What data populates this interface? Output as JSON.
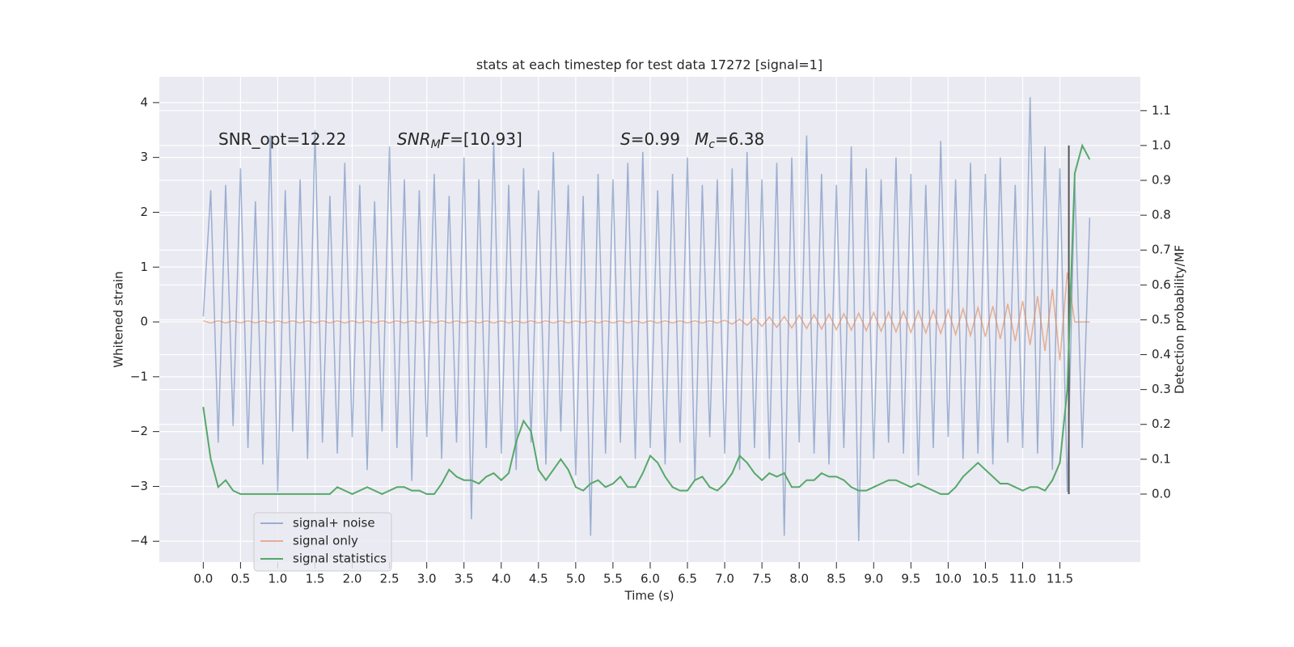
{
  "chart_data": {
    "type": "line",
    "title": "stats at each timestep for test data 17272 [signal=1]",
    "xlabel": "Time (s)",
    "ylabel": "Whitened strain",
    "y2label": "Detection probability/MF",
    "xlim": [
      -0.59,
      12.58
    ],
    "ylim": [
      -4.38,
      4.47
    ],
    "y2lim": [
      -0.195,
      1.197
    ],
    "xticks": [
      {
        "value": 0,
        "label": "0.0"
      },
      0.5,
      {
        "value": 1,
        "label": "1.0"
      },
      1.5,
      {
        "value": 2,
        "label": "2.0"
      },
      2.5,
      {
        "value": 3,
        "label": "3.0"
      },
      3.5,
      {
        "value": 4,
        "label": "4.0"
      },
      4.5,
      {
        "value": 5,
        "label": "5.0"
      },
      5.5,
      {
        "value": 6,
        "label": "6.0"
      },
      6.5,
      {
        "value": 7,
        "label": "7.0"
      },
      7.5,
      {
        "value": 8,
        "label": "8.0"
      },
      8.5,
      {
        "value": 9,
        "label": "9.0"
      },
      9.5,
      {
        "value": 10,
        "label": "10.0"
      },
      10.5,
      {
        "value": 11,
        "label": "11.0"
      },
      11.5
    ],
    "yticks": [
      {
        "value": -4,
        "label": "−4"
      },
      {
        "value": -3,
        "label": "−3"
      },
      {
        "value": -2,
        "label": "−2"
      },
      {
        "value": -1,
        "label": "−1"
      },
      0,
      1,
      2,
      3,
      4
    ],
    "y2ticks": [
      {
        "value": 0,
        "label": "0.0"
      },
      0.1,
      0.2,
      0.3,
      0.4,
      0.5,
      0.6,
      0.7,
      0.8,
      0.9,
      {
        "value": 1,
        "label": "1.0"
      },
      1.1
    ],
    "grid": true,
    "legend": "lower left",
    "x": [
      0.0,
      0.1,
      0.2,
      0.3,
      0.4,
      0.5,
      0.6,
      0.7,
      0.8,
      0.9,
      1.0,
      1.1,
      1.2,
      1.3,
      1.4,
      1.5,
      1.6,
      1.7,
      1.8,
      1.9,
      2.0,
      2.1,
      2.2,
      2.3,
      2.4,
      2.5,
      2.6,
      2.7,
      2.8,
      2.9,
      3.0,
      3.1,
      3.2,
      3.3,
      3.4,
      3.5,
      3.6,
      3.7,
      3.8,
      3.9,
      4.0,
      4.1,
      4.2,
      4.3,
      4.4,
      4.5,
      4.6,
      4.7,
      4.8,
      4.9,
      5.0,
      5.1,
      5.2,
      5.3,
      5.4,
      5.5,
      5.6,
      5.7,
      5.8,
      5.9,
      6.0,
      6.1,
      6.2,
      6.3,
      6.4,
      6.5,
      6.6,
      6.7,
      6.8,
      6.9,
      7.0,
      7.1,
      7.2,
      7.3,
      7.4,
      7.5,
      7.6,
      7.7,
      7.8,
      7.9,
      8.0,
      8.1,
      8.2,
      8.3,
      8.4,
      8.5,
      8.6,
      8.7,
      8.8,
      8.9,
      9.0,
      9.1,
      9.2,
      9.3,
      9.4,
      9.5,
      9.6,
      9.7,
      9.8,
      9.9,
      10.0,
      10.1,
      10.2,
      10.3,
      10.4,
      10.5,
      10.6,
      10.7,
      10.8,
      10.9,
      11.0,
      11.1,
      11.2,
      11.3,
      11.4,
      11.5,
      11.6,
      11.7,
      11.8,
      11.9
    ],
    "series": [
      {
        "name": "signal+ noise",
        "color": "#4c72b0",
        "opacity": 0.5,
        "values": [
          0.1,
          2.4,
          -2.2,
          2.5,
          -1.9,
          2.8,
          -2.3,
          2.2,
          -2.6,
          3.4,
          -3.1,
          2.4,
          -2.0,
          2.6,
          -2.5,
          3.5,
          -2.2,
          2.3,
          -2.4,
          2.9,
          -2.1,
          2.5,
          -2.7,
          2.2,
          -2.0,
          3.2,
          -2.3,
          2.6,
          -2.9,
          2.4,
          -2.1,
          2.7,
          -2.5,
          2.3,
          -2.2,
          3.0,
          -3.6,
          2.6,
          -2.3,
          3.3,
          -2.4,
          2.5,
          -2.7,
          2.8,
          -2.2,
          2.4,
          -2.6,
          3.1,
          -2.0,
          2.5,
          -2.8,
          2.3,
          -3.9,
          2.7,
          -2.4,
          2.6,
          -2.2,
          2.9,
          -2.5,
          3.1,
          -2.3,
          2.4,
          -2.6,
          2.7,
          -2.2,
          3.0,
          -2.9,
          2.5,
          -2.1,
          2.6,
          -2.4,
          2.8,
          -2.7,
          3.1,
          -2.3,
          2.6,
          -2.5,
          2.9,
          -3.9,
          3.0,
          -2.2,
          3.4,
          -2.4,
          2.7,
          -2.6,
          2.5,
          -2.3,
          3.2,
          -4.0,
          2.8,
          -2.5,
          2.6,
          -2.2,
          3.0,
          -2.4,
          2.7,
          -2.8,
          2.5,
          -2.3,
          3.3,
          -2.1,
          2.6,
          -2.5,
          2.9,
          -2.4,
          2.7,
          -2.6,
          3.0,
          -2.2,
          2.5,
          -2.3,
          4.1,
          -2.4,
          3.2,
          -2.7,
          2.8,
          -3.1,
          2.6,
          -2.3,
          1.9
        ]
      },
      {
        "name": "signal only",
        "color": "#dd8452",
        "opacity": 0.6,
        "values": [
          0.02,
          -0.02,
          0.02,
          -0.02,
          0.02,
          -0.02,
          0.02,
          -0.02,
          0.02,
          -0.02,
          0.02,
          -0.02,
          0.02,
          -0.02,
          0.02,
          -0.02,
          0.02,
          -0.02,
          0.02,
          -0.02,
          0.02,
          -0.02,
          0.02,
          -0.02,
          0.02,
          -0.02,
          0.02,
          -0.02,
          0.02,
          -0.02,
          0.02,
          -0.02,
          0.02,
          -0.02,
          0.02,
          -0.02,
          0.02,
          -0.02,
          0.02,
          -0.02,
          0.02,
          -0.02,
          0.02,
          -0.02,
          0.02,
          -0.02,
          0.02,
          -0.02,
          0.02,
          -0.02,
          0.02,
          -0.02,
          0.02,
          -0.02,
          0.02,
          -0.02,
          0.02,
          -0.02,
          0.02,
          -0.02,
          0.02,
          -0.02,
          0.02,
          -0.02,
          0.02,
          -0.02,
          0.02,
          -0.02,
          0.02,
          -0.02,
          0.03,
          -0.04,
          0.05,
          -0.06,
          0.07,
          -0.08,
          0.09,
          -0.1,
          0.1,
          -0.11,
          0.12,
          -0.12,
          0.13,
          -0.13,
          0.14,
          -0.14,
          0.15,
          -0.15,
          0.16,
          -0.16,
          0.17,
          -0.17,
          0.18,
          -0.18,
          0.19,
          -0.19,
          0.2,
          -0.2,
          0.21,
          -0.21,
          0.22,
          -0.23,
          0.24,
          -0.25,
          0.26,
          -0.27,
          0.29,
          -0.31,
          0.33,
          -0.35,
          0.38,
          -0.42,
          0.47,
          -0.53,
          0.6,
          -0.7,
          0.9,
          0,
          0,
          0
        ]
      },
      {
        "name": "signal statistics",
        "color": "#55a868",
        "opacity": 1,
        "axis": "y2",
        "values": [
          0.25,
          0.1,
          0.02,
          0.04,
          0.01,
          0.0,
          0.0,
          0.0,
          0.0,
          0.0,
          0.0,
          0.0,
          0.0,
          0.0,
          0.0,
          0.0,
          0.0,
          0.0,
          0.02,
          0.01,
          0.0,
          0.01,
          0.02,
          0.01,
          0.0,
          0.01,
          0.02,
          0.02,
          0.01,
          0.01,
          0.0,
          0.0,
          0.03,
          0.07,
          0.05,
          0.04,
          0.04,
          0.03,
          0.05,
          0.06,
          0.04,
          0.06,
          0.15,
          0.21,
          0.18,
          0.07,
          0.04,
          0.07,
          0.1,
          0.07,
          0.02,
          0.01,
          0.03,
          0.04,
          0.02,
          0.03,
          0.05,
          0.02,
          0.02,
          0.06,
          0.11,
          0.09,
          0.05,
          0.02,
          0.01,
          0.01,
          0.04,
          0.05,
          0.02,
          0.01,
          0.03,
          0.06,
          0.11,
          0.09,
          0.06,
          0.04,
          0.06,
          0.05,
          0.06,
          0.02,
          0.02,
          0.04,
          0.04,
          0.06,
          0.05,
          0.05,
          0.04,
          0.02,
          0.01,
          0.01,
          0.02,
          0.03,
          0.04,
          0.04,
          0.03,
          0.02,
          0.03,
          0.02,
          0.01,
          0.0,
          0.0,
          0.02,
          0.05,
          0.07,
          0.09,
          0.07,
          0.05,
          0.03,
          0.03,
          0.02,
          0.01,
          0.02,
          0.02,
          0.01,
          0.04,
          0.09,
          0.3,
          0.92,
          1.0,
          0.96
        ]
      }
    ],
    "vline": {
      "x": 11.62,
      "y2": [
        0,
        1
      ],
      "color": "#555555"
    },
    "annotations": [
      {
        "parts": [
          {
            "text": "SNR_opt=12.22"
          }
        ]
      },
      {
        "parts": [
          {
            "text": "SNR",
            "italic": true
          },
          {
            "text": "M",
            "italic": true,
            "sub": true
          },
          {
            "text": "F",
            "italic": true
          },
          {
            "text": "=[10.93]"
          }
        ]
      },
      {
        "parts": [
          {
            "text": "S",
            "italic": true
          },
          {
            "text": "=0.99"
          }
        ]
      },
      {
        "parts": [
          {
            "text": "M",
            "italic": true
          },
          {
            "text": "c",
            "italic": true,
            "sub": true
          },
          {
            "text": "=6.38"
          }
        ]
      }
    ]
  }
}
